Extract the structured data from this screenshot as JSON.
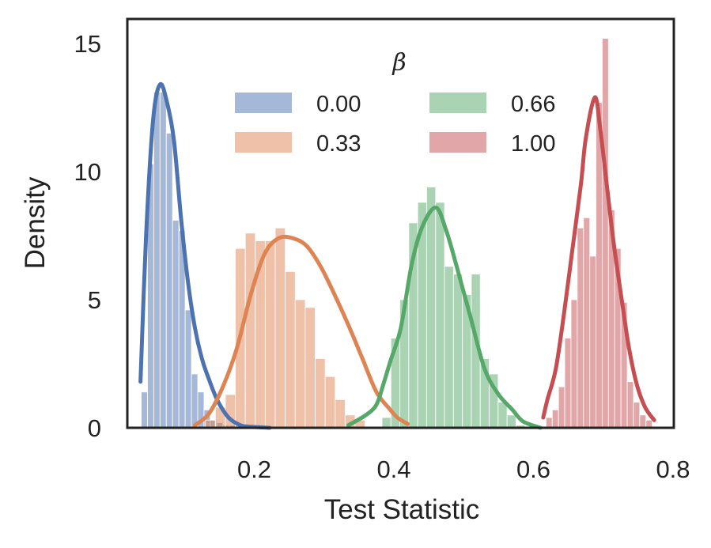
{
  "chart_data": {
    "type": "histogram-kde",
    "xlabel": "Test Statistic",
    "ylabel": "Density",
    "xlim": [
      0.0,
      0.8
    ],
    "ylim": [
      0,
      16
    ],
    "xticks": [
      0.2,
      0.4,
      0.6,
      0.8
    ],
    "xtick_labels": [
      "0.2",
      "0.4",
      "0.6",
      "0.8"
    ],
    "yticks": [
      0,
      5,
      10,
      15
    ],
    "ytick_labels": [
      "0",
      "5",
      "10",
      "15"
    ],
    "grid": false,
    "legend": {
      "title": "β",
      "placement": "top-center",
      "columns": 2
    },
    "series": [
      {
        "name": "0.00",
        "color": "#4c72b0",
        "bin_start": 0.038,
        "bin_width": 0.009,
        "bar_heights": [
          1.4,
          10.3,
          13.1,
          13.1,
          11.5,
          8.1,
          7.7,
          4.6,
          2.1,
          1.4,
          0.7,
          0.3,
          0.2,
          0.1,
          0.1
        ],
        "kde": [
          [
            0.037,
            1.8
          ],
          [
            0.045,
            7.5
          ],
          [
            0.055,
            12.0
          ],
          [
            0.065,
            13.4
          ],
          [
            0.075,
            12.7
          ],
          [
            0.085,
            11.2
          ],
          [
            0.095,
            8.2
          ],
          [
            0.105,
            5.7
          ],
          [
            0.115,
            3.9
          ],
          [
            0.125,
            2.7
          ],
          [
            0.135,
            1.9
          ],
          [
            0.145,
            1.2
          ],
          [
            0.155,
            0.7
          ],
          [
            0.165,
            0.35
          ],
          [
            0.18,
            0.1
          ],
          [
            0.19,
            0.05
          ],
          [
            0.222,
            0.0
          ]
        ]
      },
      {
        "name": "0.33",
        "color": "#dd8452",
        "bin_start": 0.13,
        "bin_width": 0.0143,
        "bar_heights": [
          0.3,
          0.8,
          1.3,
          7.0,
          7.6,
          7.3,
          7.3,
          7.8,
          6.1,
          5.0,
          4.7,
          2.7,
          2.0,
          1.1,
          0.5,
          0.3
        ],
        "kde": [
          [
            0.115,
            0.1
          ],
          [
            0.135,
            0.55
          ],
          [
            0.155,
            1.6
          ],
          [
            0.175,
            3.1
          ],
          [
            0.195,
            5.2
          ],
          [
            0.215,
            6.8
          ],
          [
            0.235,
            7.4
          ],
          [
            0.255,
            7.4
          ],
          [
            0.275,
            7.1
          ],
          [
            0.295,
            6.3
          ],
          [
            0.315,
            5.2
          ],
          [
            0.335,
            4.0
          ],
          [
            0.355,
            2.7
          ],
          [
            0.375,
            1.4
          ],
          [
            0.395,
            0.7
          ],
          [
            0.405,
            0.4
          ],
          [
            0.42,
            0.15
          ]
        ]
      },
      {
        "name": "0.66",
        "color": "#55a868",
        "bin_start": 0.383,
        "bin_width": 0.0128,
        "bar_heights": [
          0.4,
          3.5,
          5.0,
          8.0,
          8.8,
          9.4,
          8.8,
          6.3,
          6.0,
          5.2,
          6.0,
          2.7,
          2.1,
          1.0,
          0.5,
          0.1
        ],
        "kde": [
          [
            0.335,
            0.1
          ],
          [
            0.36,
            0.5
          ],
          [
            0.375,
            0.9
          ],
          [
            0.385,
            1.7
          ],
          [
            0.395,
            2.6
          ],
          [
            0.41,
            3.9
          ],
          [
            0.425,
            6.3
          ],
          [
            0.44,
            7.8
          ],
          [
            0.46,
            8.6
          ],
          [
            0.475,
            7.7
          ],
          [
            0.49,
            6.3
          ],
          [
            0.51,
            4.3
          ],
          [
            0.53,
            2.3
          ],
          [
            0.55,
            1.3
          ],
          [
            0.57,
            0.7
          ],
          [
            0.585,
            0.25
          ],
          [
            0.61,
            0.0
          ]
        ]
      },
      {
        "name": "1.00",
        "color": "#c44e52",
        "bin_start": 0.618,
        "bin_width": 0.00895,
        "bar_heights": [
          0.4,
          0.7,
          1.6,
          3.5,
          5.0,
          7.8,
          8.2,
          6.7,
          12.7,
          15.2,
          8.5,
          7.0,
          4.9,
          1.8,
          1.0,
          0.5,
          0.3
        ],
        "kde": [
          [
            0.614,
            0.4
          ],
          [
            0.62,
            1.1
          ],
          [
            0.632,
            2.3
          ],
          [
            0.644,
            4.5
          ],
          [
            0.656,
            7.0
          ],
          [
            0.668,
            9.5
          ],
          [
            0.675,
            11.3
          ],
          [
            0.688,
            12.9
          ],
          [
            0.696,
            11.6
          ],
          [
            0.705,
            9.5
          ],
          [
            0.715,
            7.2
          ],
          [
            0.727,
            4.9
          ],
          [
            0.737,
            3.1
          ],
          [
            0.748,
            1.7
          ],
          [
            0.76,
            0.8
          ],
          [
            0.773,
            0.3
          ]
        ]
      }
    ]
  }
}
